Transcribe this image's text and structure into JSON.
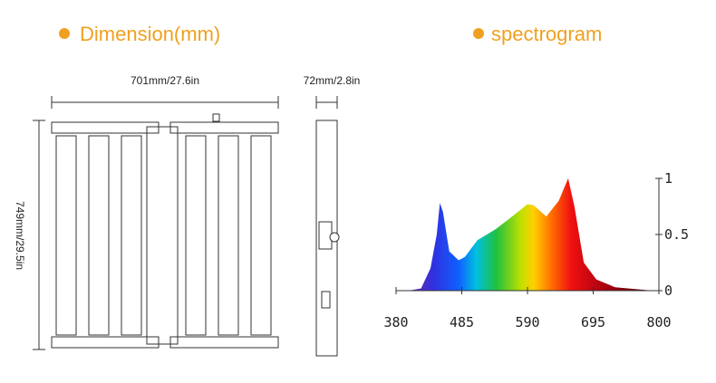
{
  "dimension": {
    "title": "Dimension(mm)",
    "width_label": "701mm/27.6in",
    "depth_label": "72mm/2.8in",
    "height_label": "749mm/29.5in"
  },
  "chart_data": {
    "type": "area",
    "title": "spectrogram",
    "x": [
      400,
      420,
      435,
      445,
      450,
      455,
      465,
      480,
      490,
      510,
      540,
      570,
      590,
      600,
      620,
      640,
      655,
      665,
      680,
      700,
      730,
      780,
      800
    ],
    "values": [
      0,
      0.02,
      0.2,
      0.5,
      0.78,
      0.7,
      0.35,
      0.27,
      0.3,
      0.45,
      0.55,
      0.68,
      0.77,
      0.76,
      0.66,
      0.8,
      1.0,
      0.75,
      0.25,
      0.1,
      0.03,
      0.005,
      0
    ],
    "xlim": [
      380,
      800
    ],
    "xticks": [
      380,
      485,
      590,
      695,
      800
    ],
    "ylim": [
      0,
      1
    ],
    "yticks": [
      0,
      0.5,
      1
    ]
  }
}
